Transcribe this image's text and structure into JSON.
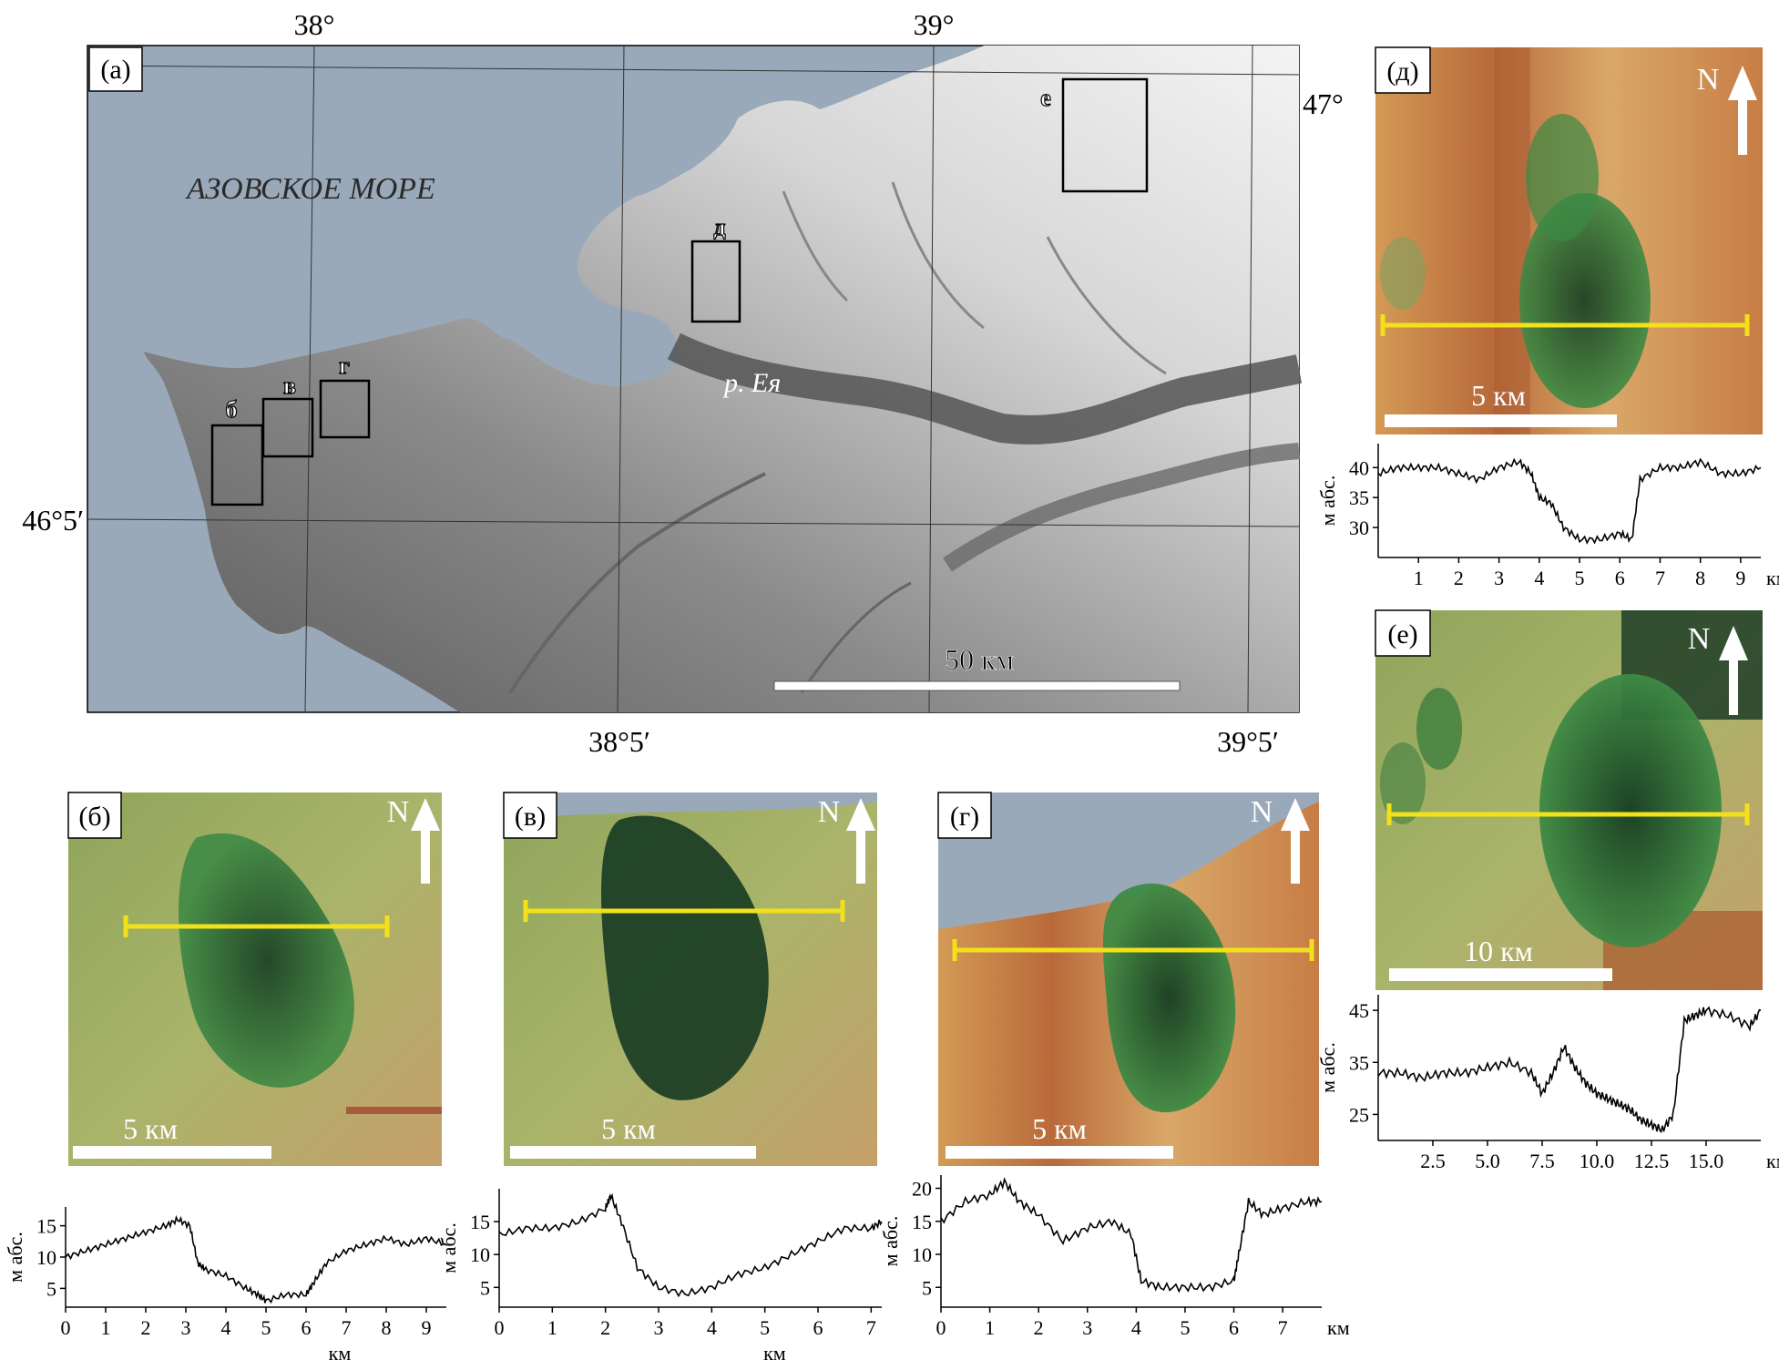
{
  "main_map": {
    "panel_label": "(а)",
    "sea_label": "АЗОВСКОЕ МОРЕ",
    "river_label": "р. Ея",
    "scale_label": "50 км",
    "top_coords": [
      "38°",
      "39°"
    ],
    "bottom_coords": [
      "38°5′",
      "39°5′"
    ],
    "left_coords": [
      "47°",
      "46°5′"
    ],
    "box_labels": [
      "б",
      "в",
      "г",
      "д",
      "е"
    ]
  },
  "insets": {
    "b": {
      "label": "(б)",
      "scale": "5 км",
      "north": "N"
    },
    "v": {
      "label": "(в)",
      "scale": "5 км",
      "north": "N"
    },
    "g": {
      "label": "(г)",
      "scale": "5 км",
      "north": "N"
    },
    "d": {
      "label": "(д)",
      "scale": "5 км",
      "north": "N"
    },
    "e": {
      "label": "(е)",
      "scale": "10 км",
      "north": "N"
    }
  },
  "colors": {
    "sea": "#9aa9b9",
    "land_light": "#f2f2f2",
    "land_dark": "#5a5a5a",
    "green": "#2f7a3c",
    "orange": "#d8a25a",
    "profile_line": "#f2e11a"
  },
  "chart_data": [
    {
      "type": "line",
      "panel": "б",
      "ylabel": "м абс.",
      "xlabel": "км",
      "xlim": [
        0,
        9.5
      ],
      "ylim": [
        2,
        18
      ],
      "yticks": [
        5,
        10,
        15
      ],
      "xticks": [
        0,
        1,
        2,
        3,
        4,
        5,
        6,
        7,
        8,
        9
      ],
      "x": [
        0,
        0.5,
        1,
        1.5,
        2,
        2.5,
        2.8,
        3.1,
        3.3,
        3.5,
        4,
        4.5,
        4.8,
        5,
        5.5,
        6,
        6.2,
        6.5,
        7,
        7.5,
        8,
        8.5,
        9,
        9.5
      ],
      "y": [
        10,
        11,
        12,
        13,
        14,
        15,
        16,
        15,
        9,
        8,
        7,
        5,
        4,
        3,
        4,
        4,
        6,
        9,
        11,
        12,
        13,
        12,
        13,
        12
      ]
    },
    {
      "type": "line",
      "panel": "в",
      "ylabel": "м абс.",
      "xlabel": "км",
      "xlim": [
        0,
        7.2
      ],
      "ylim": [
        2,
        20
      ],
      "yticks": [
        5,
        10,
        15
      ],
      "xticks": [
        0,
        1,
        2,
        3,
        4,
        5,
        6,
        7
      ],
      "x": [
        0,
        0.5,
        1,
        1.5,
        2,
        2.1,
        2.3,
        2.6,
        3,
        3.5,
        4,
        4.5,
        5,
        5.5,
        6,
        6.5,
        7,
        7.2
      ],
      "y": [
        13,
        14,
        14,
        15,
        17,
        19,
        15,
        8,
        5,
        4,
        5,
        7,
        8,
        10,
        12,
        14,
        14,
        15
      ]
    },
    {
      "type": "line",
      "panel": "г",
      "ylabel": "м абс.",
      "xlabel": "км",
      "xlim": [
        0,
        7.8
      ],
      "ylim": [
        2,
        22
      ],
      "yticks": [
        5,
        10,
        15,
        20
      ],
      "xticks": [
        0,
        1,
        2,
        3,
        4,
        5,
        6,
        7
      ],
      "x": [
        0,
        0.5,
        1,
        1.3,
        1.6,
        2,
        2.5,
        3,
        3.5,
        3.9,
        4.1,
        4.5,
        5,
        5.5,
        6,
        6.1,
        6.3,
        6.6,
        7,
        7.5,
        7.8
      ],
      "y": [
        15,
        18,
        19,
        21,
        18,
        16,
        12,
        14,
        15,
        13,
        6,
        5,
        5,
        5,
        6,
        10,
        18,
        16,
        17,
        18,
        18
      ]
    },
    {
      "type": "line",
      "panel": "д",
      "ylabel": "м абс.",
      "xlabel": "км",
      "xlim": [
        0,
        9.5
      ],
      "ylim": [
        25,
        44
      ],
      "yticks": [
        30,
        35,
        40
      ],
      "xticks": [
        1,
        2,
        3,
        4,
        5,
        6,
        7,
        8,
        9
      ],
      "x": [
        0,
        0.5,
        1,
        1.5,
        2,
        2.5,
        3,
        3.5,
        3.8,
        4,
        4.3,
        4.6,
        5,
        5.5,
        6,
        6.3,
        6.5,
        7,
        7.5,
        8,
        8.5,
        9,
        9.5
      ],
      "y": [
        39,
        40,
        40,
        40,
        39,
        38,
        40,
        41,
        39,
        35,
        34,
        30,
        28,
        28,
        29,
        28,
        38,
        40,
        40,
        41,
        39,
        39,
        40
      ]
    },
    {
      "type": "line",
      "panel": "е",
      "ylabel": "м абс.",
      "xlabel": "км",
      "xlim": [
        0,
        17.5
      ],
      "ylim": [
        20,
        48
      ],
      "yticks": [
        25,
        35,
        45
      ],
      "xticks": [
        2.5,
        5.0,
        7.5,
        10.0,
        12.5,
        15.0
      ],
      "xtick_labels": [
        "2.5",
        "5.0",
        "7.5",
        "10.0",
        "12.5",
        "15.0"
      ],
      "x": [
        0,
        1,
        2,
        3,
        4,
        5,
        6,
        7,
        7.5,
        8,
        8.5,
        9,
        9.5,
        10,
        10.5,
        11,
        11.5,
        12,
        12.5,
        13,
        13.5,
        14,
        14.5,
        15,
        16,
        17,
        17.5
      ],
      "y": [
        33,
        33,
        32,
        33,
        33,
        34,
        35,
        33,
        29,
        33,
        38,
        34,
        31,
        29,
        28,
        27,
        26,
        24,
        23,
        22,
        25,
        43,
        44,
        45,
        44,
        42,
        45
      ]
    }
  ]
}
